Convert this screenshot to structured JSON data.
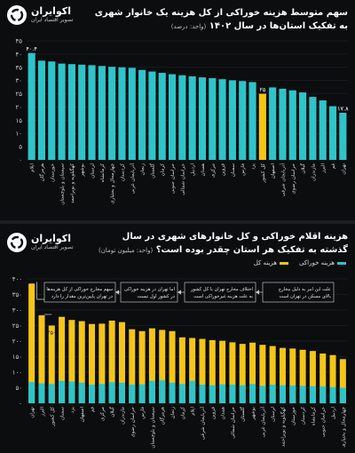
{
  "top": {
    "brand": {
      "name": "اکوایران",
      "tagline": "تصویر اقتصاد ایران"
    },
    "title_line1": "سهم متوسط هزینه خوراکی از کل هزینه یک خانوار شهری",
    "title_line2": "به تفکیک استان‌ها در سال ۱۴۰۲",
    "unit": "(واحد: درصد)",
    "colors": {
      "bar": "#2ec4c9",
      "highlight": "#f5c518",
      "text": "#ffffff"
    }
  },
  "bottom": {
    "brand": {
      "name": "اکوایران",
      "tagline": "تصویر اقتصاد ایران"
    },
    "title_line1": "هزینه اقلام خوراکی و کل خانوارهای شهری در سال",
    "title_line2": "گذشته به تفکیک هر استان چقدر بوده است؟",
    "unit": "(واحد: میلیون تومان)",
    "legend": {
      "food": "هزینه خوراکی",
      "total": "هزینه کل"
    },
    "annotations": [
      "سهم مخارج خوراکی از کل هزینه‌ها در تهران پایین‌ترین مقدار را دارد",
      "اما تهران در هزینه خوراکی در کشور اول نیست",
      "اختلاف مخارج تهران با کل کشور به علت هزینه غیرخوراکی است",
      "علت این امر به دلیل مخارج بالای مسکن در تهران است"
    ],
    "colors": {
      "food": "#2ec4c9",
      "total": "#f5c518",
      "arrow": "#cfcfcf"
    }
  },
  "chart_data": [
    {
      "type": "bar",
      "title": "سهم متوسط هزینه خوراکی از کل هزینه یک خانوار شهری به تفکیک استان‌ها در سال ۱۴۰۲",
      "ylabel": "(واحد: درصد)",
      "ylim": [
        0,
        45
      ],
      "yticks": [
        0,
        5,
        10,
        15,
        20,
        25,
        30,
        35,
        40,
        45
      ],
      "categories": [
        "ایلام",
        "هرمزگان",
        "خوزستان",
        "سیستان و بلوچستان",
        "کهگیلویه و بویراحمد",
        "بوشهر",
        "لرستان",
        "کرمانشاه",
        "چهارمحال و بختیاری",
        "کردستان",
        "آذربایجان غربی",
        "زنجان",
        "گلستان",
        "کرمان",
        "خراسان جنوبی",
        "خراسان شمالی",
        "اردبیل",
        "همدان",
        "مرکزی",
        "قزوین",
        "سمنان",
        "فارس",
        "یزد",
        "کل کشور",
        "اصفهان",
        "آذربایجان شرقی",
        "خراسان رضوی",
        "گیلان",
        "مازندران",
        "البرز",
        "قم",
        "تهران"
      ],
      "values": [
        40.4,
        37.5,
        37.2,
        36.4,
        36.2,
        36.0,
        35.8,
        35.5,
        35.2,
        35.0,
        34.8,
        34.0,
        33.4,
        32.9,
        32.4,
        32.0,
        31.6,
        31.2,
        30.9,
        30.5,
        30.1,
        29.8,
        29.4,
        25,
        27.4,
        26.9,
        26.3,
        25.5,
        23.8,
        22.5,
        20.3,
        17.8
      ],
      "labels": {
        "0": "۴۰.۴",
        "23": "۲۵",
        "31": "۱۷.۸"
      },
      "highlight_index": 23
    },
    {
      "type": "bar",
      "title": "هزینه اقلام خوراکی و کل خانوارهای شهری در سال گذشته به تفکیک هر استان چقدر بوده است؟",
      "ylabel": "(واحد: میلیون تومان)",
      "ylim": [
        0,
        400
      ],
      "yticks": [
        0,
        50,
        100,
        150,
        200,
        250,
        300,
        350,
        400
      ],
      "categories": [
        "تهران",
        "البرز",
        "کل کشور",
        "سمنان",
        "یزد",
        "اصفهان",
        "قم",
        "مرکزی",
        "گیلان",
        "مازندران",
        "خراسان رضوی",
        "فارس",
        "سیستان و بلوچستان",
        "هرمزگان",
        "زنجان",
        "کرمان",
        "ایلام",
        "آذربایجان شرقی",
        "قزوین",
        "همدان",
        "خراسان شمالی",
        "گلستان",
        "بوشهر",
        "آذربایجان غربی",
        "لرستان",
        "کهگیلویه و بویراحمد",
        "خوزستان",
        "کردستان",
        "کرمانشاه",
        "خراسان جنوبی",
        "اردبیل",
        "چهارمحال و بختیاری"
      ],
      "series": [
        {
          "name": "هزینه خوراکی",
          "values": [
            68,
            64,
            62,
            72,
            70,
            66,
            60,
            62,
            68,
            66,
            60,
            61,
            72,
            74,
            66,
            62,
            72,
            60,
            58,
            61,
            60,
            58,
            62,
            56,
            60,
            58,
            57,
            56,
            55,
            54,
            52,
            50
          ]
        },
        {
          "name": "هزینه کل",
          "values": [
            385,
            283,
            250,
            278,
            268,
            264,
            255,
            256,
            266,
            261,
            238,
            232,
            241,
            236,
            232,
            212,
            210,
            207,
            203,
            201,
            196,
            191,
            195,
            188,
            184,
            178,
            176,
            172,
            168,
            160,
            155,
            142
          ]
        }
      ],
      "labels": {
        "2": "۲۵۰"
      }
    }
  ]
}
